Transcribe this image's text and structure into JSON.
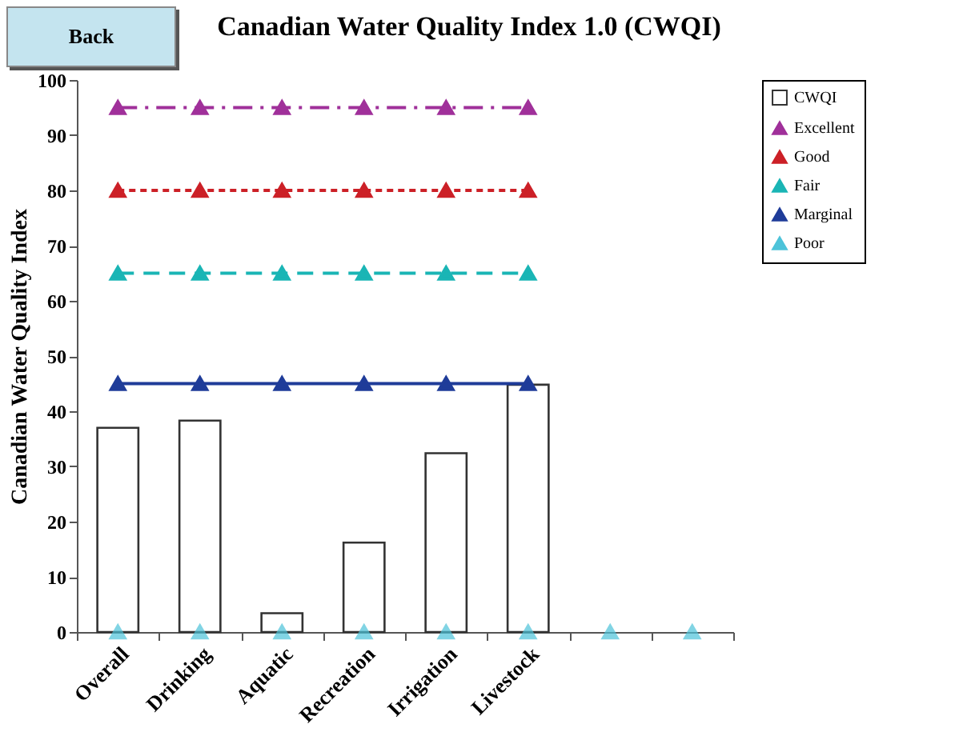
{
  "chart_data": {
    "type": "bar",
    "title": "Canadian Water Quality Index 1.0 (CWQI)",
    "ylabel": "Canadian Water Quality Index",
    "categories": [
      "Overall",
      "Drinking",
      "Aquatic",
      "Recreation",
      "Irrigation",
      "Livestock",
      null,
      null
    ],
    "series": [
      {
        "name": "CWQI",
        "color": "#ffffff",
        "values": [
          37,
          38.3,
          3.4,
          16.2,
          32.4,
          44.8,
          null,
          null
        ]
      },
      {
        "name": "Excellent",
        "type": "line",
        "color": "#a0309a",
        "line_style": "dashdot",
        "marker": "triangle",
        "values": [
          95,
          95,
          95,
          95,
          95,
          95,
          null,
          null
        ]
      },
      {
        "name": "Good",
        "type": "line",
        "color": "#cc2027",
        "line_style": "dotted",
        "marker": "triangle",
        "values": [
          80,
          80,
          80,
          80,
          80,
          80,
          null,
          null
        ]
      },
      {
        "name": "Fair",
        "type": "line",
        "color": "#1ab5b5",
        "line_style": "dashed",
        "marker": "triangle",
        "values": [
          65,
          65,
          65,
          65,
          65,
          65,
          null,
          null
        ]
      },
      {
        "name": "Marginal",
        "type": "line",
        "color": "#1f3c99",
        "line_style": "solid",
        "marker": "triangle",
        "values": [
          45,
          45,
          45,
          45,
          45,
          45,
          null,
          null
        ]
      },
      {
        "name": "Poor",
        "type": "scatter",
        "color": "#4dc3d9",
        "marker": "triangle",
        "values": [
          0,
          0,
          0,
          0,
          0,
          0,
          0,
          0
        ]
      }
    ],
    "ylim": [
      0,
      100
    ],
    "yticks": [
      0,
      10,
      20,
      30,
      40,
      50,
      60,
      70,
      80,
      90,
      100
    ],
    "grid": false,
    "legend": "right",
    "annotations": [
      "Back"
    ]
  }
}
